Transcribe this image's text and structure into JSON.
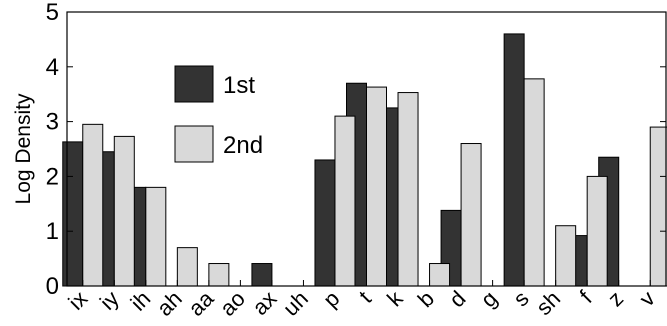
{
  "chart_data": {
    "type": "bar",
    "ylabel": "Log Density",
    "xlabel": "",
    "ylim": [
      0,
      5
    ],
    "yticks": [
      0,
      1,
      2,
      3,
      4,
      5
    ],
    "grid": false,
    "legend_position": "upper-left inside plot",
    "categories": [
      "ix",
      "iy",
      "ih",
      "ah",
      "aa",
      "ao",
      "ax",
      "uh",
      "p",
      "t",
      "k",
      "b",
      "d",
      "g",
      "s",
      "sh",
      "f",
      "z",
      "v"
    ],
    "series": [
      {
        "name": "1st",
        "color": "#333333",
        "values": [
          2.63,
          2.45,
          1.8,
          0,
          0,
          0,
          0.41,
          0,
          2.3,
          3.7,
          3.25,
          0,
          1.38,
          0,
          4.6,
          0,
          0.92,
          2.35,
          0
        ]
      },
      {
        "name": "2nd",
        "color": "#d9d9d9",
        "values": [
          2.95,
          2.73,
          1.8,
          0.7,
          0.41,
          0,
          0,
          0,
          3.1,
          3.63,
          3.53,
          0.41,
          2.6,
          0,
          3.78,
          1.1,
          2.0,
          0,
          2.9
        ]
      }
    ]
  }
}
